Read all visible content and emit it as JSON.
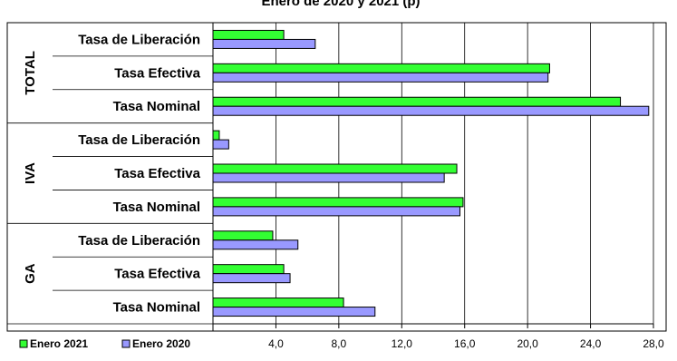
{
  "chart_data": {
    "type": "bar",
    "orientation": "horizontal",
    "title": "Enero de 2020 y 2021 (p)",
    "groups": [
      {
        "name": "TOTAL",
        "categories": [
          "Tasa de Liberación",
          "Tasa Efectiva",
          "Tasa Nominal"
        ]
      },
      {
        "name": "IVA",
        "categories": [
          "Tasa de Liberación",
          "Tasa Efectiva",
          "Tasa Nominal"
        ]
      },
      {
        "name": "GA",
        "categories": [
          "Tasa de Liberación",
          "Tasa Efectiva",
          "Tasa Nominal"
        ]
      }
    ],
    "series": [
      {
        "name": "Enero 2021",
        "color": "#33ff33",
        "values": [
          4.5,
          21.4,
          25.9,
          0.4,
          15.5,
          15.9,
          3.8,
          4.5,
          8.3
        ]
      },
      {
        "name": "Enero 2020",
        "color": "#9999ff",
        "values": [
          6.5,
          21.3,
          27.7,
          1.0,
          14.7,
          15.7,
          5.4,
          4.9,
          10.3
        ]
      }
    ],
    "xlim": [
      0,
      28
    ],
    "xticks": [
      "4,0",
      "8,0",
      "12,0",
      "16,0",
      "20,0",
      "24,0",
      "28,0"
    ],
    "grid": true,
    "legend_position": "bottom-left"
  }
}
